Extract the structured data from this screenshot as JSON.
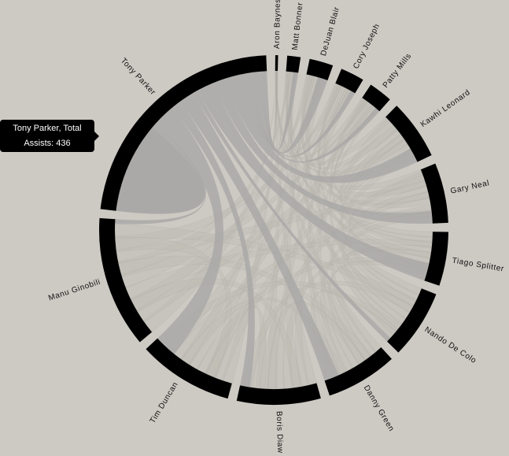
{
  "chart_data": {
    "type": "chord",
    "title": "",
    "groups": [
      {
        "name": "Aron Baynes",
        "value": 5
      },
      {
        "name": "Matt Bonner",
        "value": 24
      },
      {
        "name": "DeJuan Blair",
        "value": 43
      },
      {
        "name": "Cory Joseph",
        "value": 43
      },
      {
        "name": "Patty Mills",
        "value": 43
      },
      {
        "name": "Kawhi Leonard",
        "value": 108
      },
      {
        "name": "Gary Neal",
        "value": 108
      },
      {
        "name": "Tiago Splitter",
        "value": 97
      },
      {
        "name": "Nando De Colo",
        "value": 124
      },
      {
        "name": "Danny Green",
        "value": 129
      },
      {
        "name": "Boris Diaw",
        "value": 151
      },
      {
        "name": "Tim Duncan",
        "value": 172
      },
      {
        "name": "Manu Ginobili",
        "value": 237
      },
      {
        "name": "Tony Parker",
        "value": 436
      }
    ],
    "highlighted_group": "Tony Parker",
    "highlighted_links": {
      "Tony Parker": 180,
      "Aron Baynes": 2,
      "Matt Bonner": 10,
      "DeJuan Blair": 20,
      "Cory Joseph": 10,
      "Patty Mills": 10,
      "Kawhi Leonard": 30,
      "Gary Neal": 25,
      "Tiago Splitter": 35,
      "Nando De Colo": 10,
      "Danny Green": 30,
      "Boris Diaw": 20,
      "Tim Duncan": 45,
      "Manu Ginobili": 9
    },
    "colors": {
      "background": "#cdc9c3",
      "arc": "#000000",
      "highlight_chord": "#a9a8a6",
      "faint_chord": "#bdb9b3"
    }
  },
  "tooltip": {
    "line1": "Tony Parker, Total",
    "line2": "Assists: 436"
  }
}
